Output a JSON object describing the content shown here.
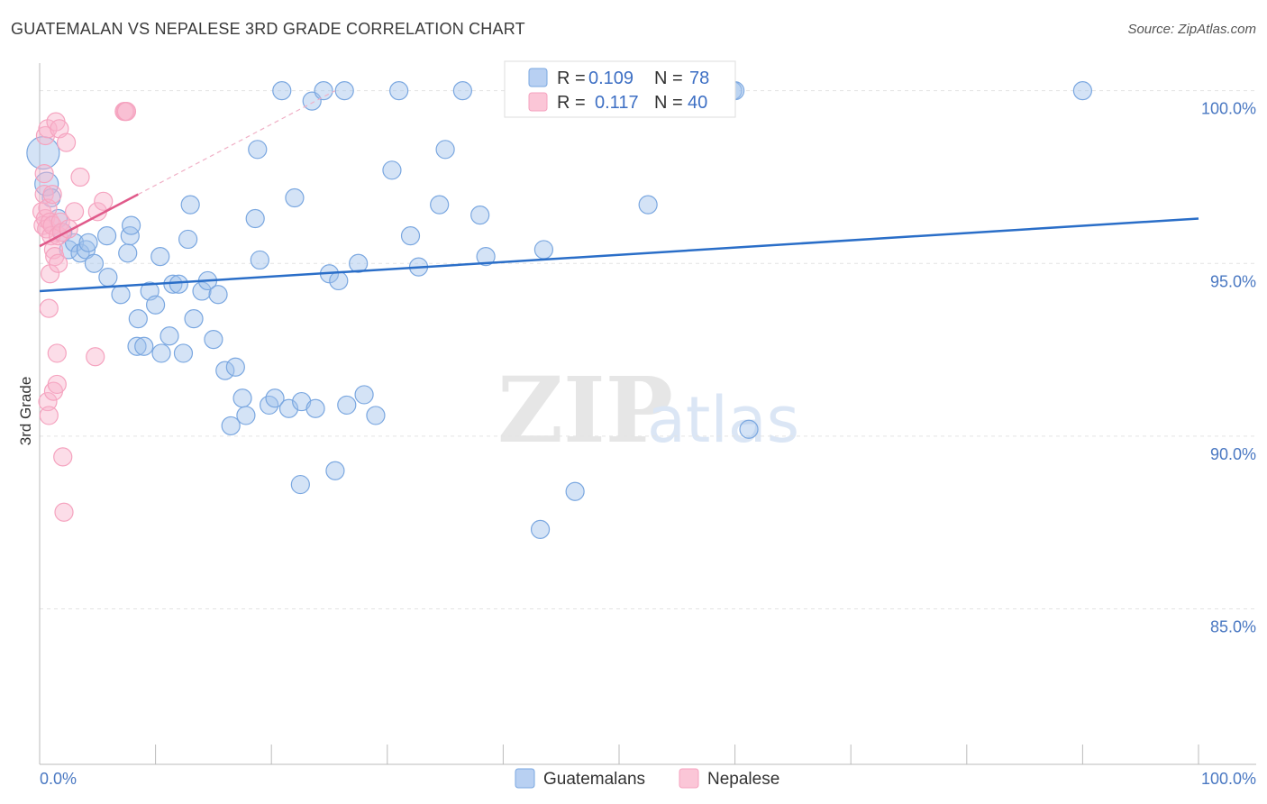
{
  "chart_data": {
    "type": "scatter",
    "title": "GUATEMALAN VS NEPALESE 3RD GRADE CORRELATION CHART",
    "source": "Source: ZipAtlas.com",
    "ylabel": "3rd Grade",
    "xlabel": "",
    "xlim": [
      0,
      100
    ],
    "ylim": [
      80.5,
      100.8
    ],
    "x_tick_labels": [
      "0.0%",
      "100.0%"
    ],
    "y_ticks": [
      {
        "value": 100,
        "label": "100.0%"
      },
      {
        "value": 95,
        "label": "95.0%"
      },
      {
        "value": 90,
        "label": "90.0%"
      },
      {
        "value": 85,
        "label": "85.0%"
      }
    ],
    "watermark": {
      "zip": "ZIP",
      "atlas": "atlas"
    },
    "legend": {
      "r_label": "R =",
      "n_label": "N =",
      "entries": [
        {
          "r": "0.109",
          "n": "78"
        },
        {
          "r": "0.117",
          "n": "40"
        }
      ]
    },
    "series": [
      {
        "name": "Guatemalans",
        "color": "#7aa7e0",
        "line_color": "#2a6ec8",
        "trend": {
          "x0": 0,
          "y0": 94.2,
          "x1": 100,
          "y1": 96.3
        },
        "points": [
          [
            0.3,
            98.2
          ],
          [
            0.6,
            97.3
          ],
          [
            1.0,
            96.9
          ],
          [
            1.6,
            96.3
          ],
          [
            2.0,
            95.9
          ],
          [
            2.5,
            95.4
          ],
          [
            3.0,
            95.6
          ],
          [
            3.5,
            95.3
          ],
          [
            4.0,
            95.4
          ],
          [
            4.2,
            95.6
          ],
          [
            4.7,
            95.0
          ],
          [
            5.8,
            95.8
          ],
          [
            5.9,
            94.6
          ],
          [
            7.0,
            94.1
          ],
          [
            7.6,
            95.3
          ],
          [
            7.8,
            95.8
          ],
          [
            7.9,
            96.1
          ],
          [
            8.4,
            92.6
          ],
          [
            8.5,
            93.4
          ],
          [
            9.0,
            92.6
          ],
          [
            9.5,
            94.2
          ],
          [
            10.0,
            93.8
          ],
          [
            10.4,
            95.2
          ],
          [
            10.5,
            92.4
          ],
          [
            11.2,
            92.9
          ],
          [
            11.5,
            94.4
          ],
          [
            12.0,
            94.4
          ],
          [
            12.4,
            92.4
          ],
          [
            12.8,
            95.7
          ],
          [
            13.0,
            96.7
          ],
          [
            13.3,
            93.4
          ],
          [
            14.0,
            94.2
          ],
          [
            14.5,
            94.5
          ],
          [
            15.0,
            92.8
          ],
          [
            15.4,
            94.1
          ],
          [
            16.0,
            91.9
          ],
          [
            16.5,
            90.3
          ],
          [
            16.9,
            92.0
          ],
          [
            17.5,
            91.1
          ],
          [
            17.8,
            90.6
          ],
          [
            18.6,
            96.3
          ],
          [
            18.8,
            98.3
          ],
          [
            19.0,
            95.1
          ],
          [
            19.8,
            90.9
          ],
          [
            20.3,
            91.1
          ],
          [
            20.9,
            100.0
          ],
          [
            21.5,
            90.8
          ],
          [
            22.0,
            96.9
          ],
          [
            22.5,
            88.6
          ],
          [
            22.6,
            91.0
          ],
          [
            23.5,
            99.7
          ],
          [
            23.8,
            90.8
          ],
          [
            24.5,
            100.0
          ],
          [
            25.0,
            94.7
          ],
          [
            25.5,
            89.0
          ],
          [
            25.8,
            94.5
          ],
          [
            26.3,
            100.0
          ],
          [
            26.5,
            90.9
          ],
          [
            27.5,
            95.0
          ],
          [
            28.0,
            91.2
          ],
          [
            29.0,
            90.6
          ],
          [
            30.4,
            97.7
          ],
          [
            31.0,
            100.0
          ],
          [
            32.0,
            95.8
          ],
          [
            32.7,
            94.9
          ],
          [
            34.5,
            96.7
          ],
          [
            35.0,
            98.3
          ],
          [
            36.5,
            100.0
          ],
          [
            38.0,
            96.4
          ],
          [
            38.5,
            95.2
          ],
          [
            43.2,
            87.3
          ],
          [
            43.5,
            95.4
          ],
          [
            46.2,
            88.4
          ],
          [
            52.5,
            96.7
          ],
          [
            59.8,
            100.0
          ],
          [
            60.0,
            100.0
          ],
          [
            61.2,
            90.2
          ],
          [
            90.0,
            100.0
          ]
        ]
      },
      {
        "name": "Nepalese",
        "color": "#f5a3bf",
        "line_color": "#e05a8a",
        "trend": {
          "x0": 0,
          "y0": 95.5,
          "x1": 8.5,
          "y1": 97.0
        },
        "points": [
          [
            0.2,
            96.5
          ],
          [
            0.3,
            96.1
          ],
          [
            0.4,
            97.6
          ],
          [
            0.4,
            97.0
          ],
          [
            0.5,
            98.7
          ],
          [
            0.5,
            96.3
          ],
          [
            0.6,
            96.0
          ],
          [
            0.7,
            98.9
          ],
          [
            0.7,
            96.6
          ],
          [
            0.7,
            91.0
          ],
          [
            0.8,
            90.6
          ],
          [
            0.8,
            93.7
          ],
          [
            0.9,
            94.7
          ],
          [
            0.9,
            96.2
          ],
          [
            1.0,
            95.8
          ],
          [
            1.1,
            97.0
          ],
          [
            1.1,
            96.1
          ],
          [
            1.2,
            95.4
          ],
          [
            1.2,
            91.3
          ],
          [
            1.3,
            95.2
          ],
          [
            1.4,
            99.1
          ],
          [
            1.5,
            92.4
          ],
          [
            1.5,
            91.5
          ],
          [
            1.6,
            95.0
          ],
          [
            1.6,
            95.8
          ],
          [
            1.7,
            98.9
          ],
          [
            1.8,
            96.2
          ],
          [
            1.9,
            95.9
          ],
          [
            2.0,
            89.4
          ],
          [
            2.1,
            87.8
          ],
          [
            2.3,
            98.5
          ],
          [
            2.5,
            96.0
          ],
          [
            3.0,
            96.5
          ],
          [
            3.5,
            97.5
          ],
          [
            4.8,
            92.3
          ],
          [
            5.0,
            96.5
          ],
          [
            5.5,
            96.8
          ],
          [
            7.3,
            99.4
          ],
          [
            7.4,
            99.4
          ],
          [
            7.5,
            99.4
          ]
        ]
      }
    ]
  }
}
